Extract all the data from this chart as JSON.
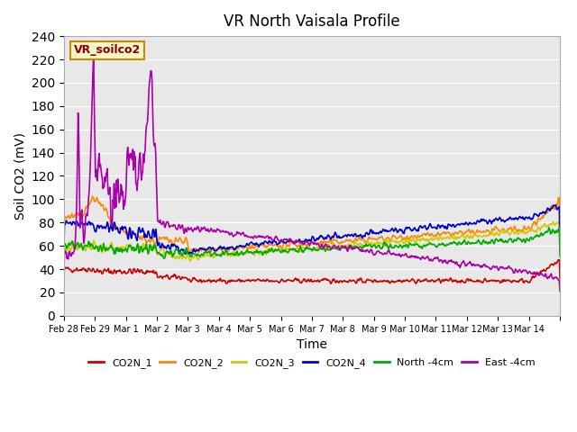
{
  "title": "VR North Vaisala Profile",
  "ylabel": "Soil CO2 (mV)",
  "xlabel": "Time",
  "legend_title": "VR_soilco2",
  "ylim": [
    0,
    240
  ],
  "xlim": [
    0,
    16
  ],
  "background_color": "#e8e8e8",
  "series": {
    "CO2N_1": {
      "color": "#cc0000"
    },
    "CO2N_2": {
      "color": "#ff8800"
    },
    "CO2N_3": {
      "color": "#cccc00"
    },
    "CO2N_4": {
      "color": "#0000cc"
    },
    "North_4cm": {
      "color": "#00aa00"
    },
    "East_4cm": {
      "color": "#aa00aa"
    }
  },
  "xtick_positions": [
    0,
    1,
    2,
    3,
    4,
    5,
    6,
    7,
    8,
    9,
    10,
    11,
    12,
    13,
    14,
    15,
    16
  ],
  "xtick_labels": [
    "Feb 28",
    "Feb 29",
    "Mar 1",
    "Mar 2",
    "Mar 3",
    "Mar 4",
    "Mar 5",
    "Mar 6",
    "Mar 7",
    "Mar 8",
    "Mar 9",
    "Mar 10",
    "Mar 11",
    "Mar 12",
    "Mar 13",
    "Mar 14",
    ""
  ],
  "ytick_values": [
    0,
    20,
    40,
    60,
    80,
    100,
    120,
    140,
    160,
    180,
    200,
    220,
    240
  ]
}
